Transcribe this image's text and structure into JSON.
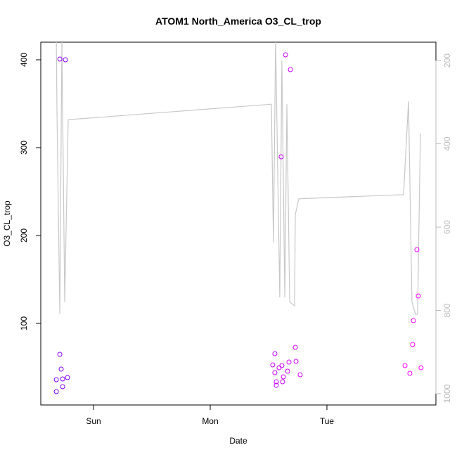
{
  "chart_data": {
    "type": "scatter",
    "title": "ATOM1 North_America O3_CL_trop",
    "x_label": "Date",
    "y_label": "O3_CL_trop",
    "xlim": [
      -0.452,
      2.934
    ],
    "xticks": [
      {
        "value": 0,
        "label": "Sun"
      },
      {
        "value": 1,
        "label": "Mon"
      },
      {
        "value": 2,
        "label": "Tue"
      }
    ],
    "ylim": [
      7.2,
      420
    ],
    "yticks": [
      100,
      200,
      300,
      400
    ],
    "y2lim": [
      1027,
      156
    ],
    "y2ticks": [
      200,
      400,
      600,
      800,
      1000
    ],
    "color_range": [
      "#7f00ff",
      "#ff00ff"
    ],
    "series": [
      {
        "x": [
          -0.319,
          -0.319,
          -0.289,
          -0.277,
          -0.289,
          -0.241,
          -0.265,
          -0.265,
          -0.223,
          1.536,
          1.554,
          1.554,
          1.566,
          1.566,
          1.59,
          1.608,
          1.614,
          1.627,
          1.62,
          1.645,
          1.663,
          1.675,
          1.687,
          1.729,
          1.735,
          1.771,
          2.669,
          2.711,
          2.735,
          2.741,
          2.771,
          2.783,
          2.807
        ],
        "values": [
          22.4,
          36,
          64.8,
          48,
          400.8,
          400,
          36.8,
          28,
          38.4,
          52.8,
          65.6,
          44,
          29.6,
          33.6,
          49.6,
          289.6,
          52,
          39.2,
          33.6,
          405.6,
          45.6,
          56,
          388.8,
          72.8,
          56.8,
          41.6,
          52,
          43.2,
          76,
          103.2,
          184,
          131.2,
          49.6
        ]
      },
      {
        "axis": "y2",
        "color": "#c8c8c8",
        "x": [
          -0.319,
          -0.313,
          -0.289,
          -0.271,
          -0.247,
          -0.217,
          1.524,
          1.542,
          1.56,
          1.596,
          1.614,
          1.639,
          1.657,
          1.681,
          1.723,
          1.729,
          1.759,
          2.657,
          2.699,
          2.729,
          2.759,
          2.777,
          2.801
        ],
        "values": [
          150,
          330,
          809,
          150,
          780,
          342,
          305,
          637,
          150,
          769,
          200,
          769,
          305,
          780,
          789,
          570,
          532,
          522,
          298,
          780,
          809,
          809,
          375
        ]
      }
    ]
  }
}
